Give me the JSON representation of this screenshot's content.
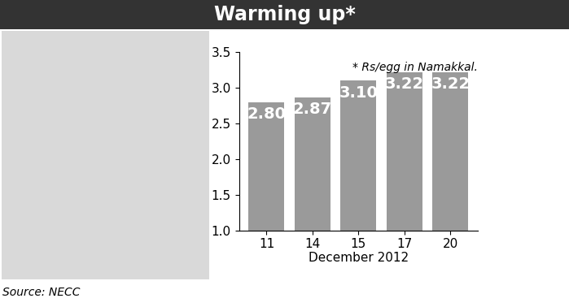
{
  "chart_data": {
    "type": "bar",
    "title": "Warming up*",
    "note": "* Rs/egg in Namakkal.",
    "source": "Source: NECC",
    "x_label": "December 2012",
    "categories": [
      "11",
      "14",
      "15",
      "17",
      "20"
    ],
    "values": [
      2.8,
      2.87,
      3.1,
      3.22,
      3.22
    ],
    "value_labels": [
      "2.80",
      "2.87",
      "3.10",
      "3.22",
      "3.22"
    ],
    "data_labels": true,
    "color": "#9a9a9a",
    "ylim": [
      1.0,
      3.5
    ],
    "yticks": [
      1.0,
      1.5,
      2.0,
      2.5,
      3.0,
      3.5
    ],
    "grid": false
  }
}
